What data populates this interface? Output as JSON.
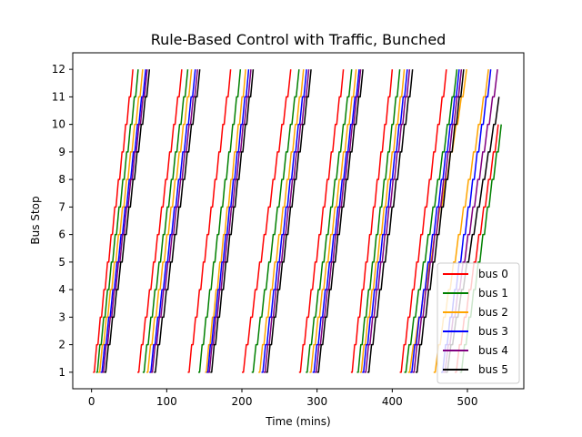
{
  "chart_data": {
    "type": "line",
    "title": "Rule-Based Control with Traffic, Bunched",
    "xlabel": "Time (mins)",
    "ylabel": "Bus Stop",
    "xlim": [
      -25,
      575
    ],
    "ylim": [
      0.4,
      12.6
    ],
    "xticks": [
      0,
      100,
      200,
      300,
      400,
      500
    ],
    "yticks": [
      1,
      2,
      3,
      4,
      5,
      6,
      7,
      8,
      9,
      10,
      11,
      12
    ],
    "grid": false,
    "legend_position": "lower-right",
    "series": [
      {
        "name": "bus 0",
        "color": "#ff0000",
        "trips": [
          {
            "x": [
              2,
              55
            ],
            "y": [
              1,
              12
            ]
          },
          {
            "x": [
              61,
              120
            ],
            "y": [
              1,
              12
            ]
          },
          {
            "x": [
              128,
              185
            ],
            "y": [
              1,
              12
            ]
          },
          {
            "x": [
              200,
              265
            ],
            "y": [
              1,
              12
            ]
          },
          {
            "x": [
              276,
              335
            ],
            "y": [
              1,
              12
            ]
          },
          {
            "x": [
              345,
              400
            ],
            "y": [
              1,
              12
            ]
          },
          {
            "x": [
              410,
              472
            ],
            "y": [
              1,
              12
            ]
          },
          {
            "x": [
              483,
              541
            ],
            "y": [
              1,
              10
            ]
          }
        ]
      },
      {
        "name": "bus 1",
        "color": "#008000",
        "trips": [
          {
            "x": [
              6,
              62
            ],
            "y": [
              1,
              12
            ]
          },
          {
            "x": [
              68,
              128
            ],
            "y": [
              1,
              12
            ]
          },
          {
            "x": [
              142,
              198
            ],
            "y": [
              1,
              12
            ]
          },
          {
            "x": [
              213,
              276
            ],
            "y": [
              1,
              12
            ]
          },
          {
            "x": [
              285,
              346
            ],
            "y": [
              1,
              12
            ]
          },
          {
            "x": [
              353,
              410
            ],
            "y": [
              1,
              12
            ]
          },
          {
            "x": [
              416,
              486
            ],
            "y": [
              1,
              12
            ]
          },
          {
            "x": [
              490,
              545
            ],
            "y": [
              1,
              10
            ]
          }
        ]
      },
      {
        "name": "bus 2",
        "color": "#ffa500",
        "trips": [
          {
            "x": [
              9,
              68
            ],
            "y": [
              1,
              12
            ]
          },
          {
            "x": [
              73,
              133
            ],
            "y": [
              1,
              12
            ]
          },
          {
            "x": [
              151,
              205
            ],
            "y": [
              1,
              12
            ]
          },
          {
            "x": [
              222,
              282
            ],
            "y": [
              1,
              12
            ]
          },
          {
            "x": [
              290,
              352
            ],
            "y": [
              1,
              12
            ]
          },
          {
            "x": [
              357,
              416
            ],
            "y": [
              1,
              12
            ]
          },
          {
            "x": [
              421,
              499
            ],
            "y": [
              1,
              12
            ]
          },
          {
            "x": [
              455,
              528
            ],
            "y": [
              1,
              12
            ]
          }
        ]
      },
      {
        "name": "bus 3",
        "color": "#0000ff",
        "trips": [
          {
            "x": [
              12,
              72
            ],
            "y": [
              1,
              12
            ]
          },
          {
            "x": [
              77,
              138
            ],
            "y": [
              1,
              12
            ]
          },
          {
            "x": [
              153,
              209
            ],
            "y": [
              1,
              12
            ]
          },
          {
            "x": [
              226,
              286
            ],
            "y": [
              1,
              12
            ]
          },
          {
            "x": [
              294,
              356
            ],
            "y": [
              1,
              12
            ]
          },
          {
            "x": [
              360,
              420
            ],
            "y": [
              1,
              12
            ]
          },
          {
            "x": [
              424,
              489
            ],
            "y": [
              1,
              12
            ]
          },
          {
            "x": [
              465,
              531
            ],
            "y": [
              1,
              12
            ]
          }
        ]
      },
      {
        "name": "bus 4",
        "color": "#800080",
        "trips": [
          {
            "x": [
              14,
              74
            ],
            "y": [
              1,
              12
            ]
          },
          {
            "x": [
              79,
              141
            ],
            "y": [
              1,
              12
            ]
          },
          {
            "x": [
              155,
              212
            ],
            "y": [
              1,
              12
            ]
          },
          {
            "x": [
              229,
              289
            ],
            "y": [
              1,
              12
            ]
          },
          {
            "x": [
              297,
              358
            ],
            "y": [
              1,
              12
            ]
          },
          {
            "x": [
              363,
              423
            ],
            "y": [
              1,
              12
            ]
          },
          {
            "x": [
              427,
              492
            ],
            "y": [
              1,
              12
            ]
          },
          {
            "x": [
              468,
              540
            ],
            "y": [
              1,
              12
            ]
          }
        ]
      },
      {
        "name": "bus 5",
        "color": "#000000",
        "trips": [
          {
            "x": [
              17,
              77
            ],
            "y": [
              1,
              12
            ]
          },
          {
            "x": [
              83,
              144
            ],
            "y": [
              1,
              12
            ]
          },
          {
            "x": [
              158,
              215
            ],
            "y": [
              1,
              12
            ]
          },
          {
            "x": [
              232,
              292
            ],
            "y": [
              1,
              12
            ]
          },
          {
            "x": [
              300,
              361
            ],
            "y": [
              1,
              12
            ]
          },
          {
            "x": [
              367,
              427
            ],
            "y": [
              1,
              12
            ]
          },
          {
            "x": [
              431,
              495
            ],
            "y": [
              1,
              12
            ]
          },
          {
            "x": [
              471,
              542
            ],
            "y": [
              1,
              11
            ]
          }
        ]
      }
    ]
  }
}
